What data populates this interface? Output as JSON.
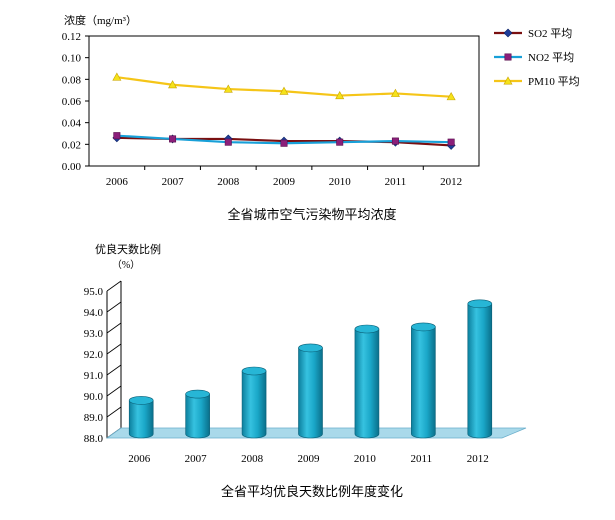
{
  "chart_data": [
    {
      "type": "line",
      "title": "全省城市空气污染物平均浓度",
      "ylabel": "浓度（mg/m³）",
      "x": [
        "2006",
        "2007",
        "2008",
        "2009",
        "2010",
        "2011",
        "2012"
      ],
      "ylim": [
        0,
        0.12
      ],
      "yticks": [
        "0.00",
        "0.02",
        "0.04",
        "0.06",
        "0.08",
        "0.10",
        "0.12"
      ],
      "grid": false,
      "legend": "right",
      "series": [
        {
          "name": "SO2 平均",
          "color": "#7a0f10",
          "marker": "diamond",
          "marker_color": "#1f3d99",
          "values": [
            0.026,
            0.025,
            0.025,
            0.023,
            0.023,
            0.022,
            0.019
          ]
        },
        {
          "name": "NO2 平均",
          "color": "#18a0d8",
          "marker": "square",
          "marker_color": "#8b1f7a",
          "values": [
            0.028,
            0.025,
            0.022,
            0.021,
            0.022,
            0.023,
            0.022
          ]
        },
        {
          "name": "PM10 平均",
          "color": "#f5c518",
          "marker": "triangle",
          "marker_color": "#f5e21a",
          "values": [
            0.082,
            0.075,
            0.071,
            0.069,
            0.065,
            0.067,
            0.064
          ]
        }
      ]
    },
    {
      "type": "bar",
      "title": "全省平均优良天数比例年度变化",
      "ylabel": "优良天数比例",
      "yunit": "（%）",
      "categories": [
        "2006",
        "2007",
        "2008",
        "2009",
        "2010",
        "2011",
        "2012"
      ],
      "values": [
        89.6,
        89.9,
        91.0,
        92.1,
        93.0,
        93.1,
        94.2
      ],
      "ylim": [
        88,
        95
      ],
      "yticks": [
        "88.0",
        "89.0",
        "90.0",
        "91.0",
        "92.0",
        "93.0",
        "94.0",
        "95.0"
      ],
      "style": "3d-cylinder",
      "colors": {
        "bar": "#1aa7c8",
        "floor": "#a9d9ea"
      }
    }
  ]
}
